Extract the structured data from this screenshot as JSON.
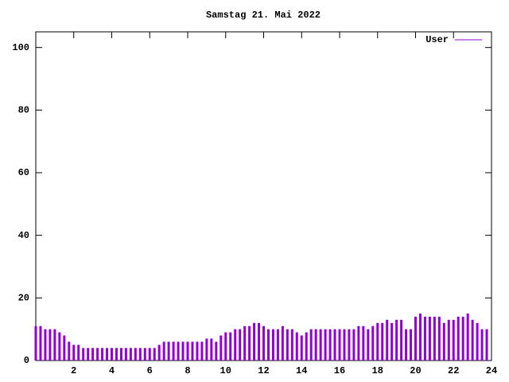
{
  "chart_data": {
    "type": "impulses",
    "title": "Samstag 21. Mai 2022",
    "x": [
      0,
      0.25,
      0.5,
      0.75,
      1,
      1.25,
      1.5,
      1.75,
      2,
      2.25,
      2.5,
      2.75,
      3,
      3.25,
      3.5,
      3.75,
      4,
      4.25,
      4.5,
      4.75,
      5,
      5.25,
      5.5,
      5.75,
      6,
      6.25,
      6.5,
      6.75,
      7,
      7.25,
      7.5,
      7.75,
      8,
      8.25,
      8.5,
      8.75,
      9,
      9.25,
      9.5,
      9.75,
      10,
      10.25,
      10.5,
      10.75,
      11,
      11.25,
      11.5,
      11.75,
      12,
      12.25,
      12.5,
      12.75,
      13,
      13.25,
      13.5,
      13.75,
      14,
      14.25,
      14.5,
      14.75,
      15,
      15.25,
      15.5,
      15.75,
      16,
      16.25,
      16.5,
      16.75,
      17,
      17.25,
      17.5,
      17.75,
      18,
      18.25,
      18.5,
      18.75,
      19,
      19.25,
      19.5,
      19.75,
      20,
      20.25,
      20.5,
      20.75,
      21,
      21.25,
      21.5,
      21.75,
      22,
      22.25,
      22.5,
      22.75,
      23,
      23.25,
      23.5,
      23.75
    ],
    "series": [
      {
        "name": "User",
        "color": "#9400d3",
        "values": [
          11,
          11,
          10,
          10,
          10,
          9,
          8,
          6,
          5,
          5,
          4,
          4,
          4,
          4,
          4,
          4,
          4,
          4,
          4,
          4,
          4,
          4,
          4,
          4,
          4,
          4,
          5,
          6,
          6,
          6,
          6,
          6,
          6,
          6,
          6,
          6,
          7,
          7,
          6,
          8,
          9,
          9,
          10,
          10,
          11,
          11,
          12,
          12,
          11,
          10,
          10,
          10,
          11,
          10,
          10,
          9,
          8,
          9,
          10,
          10,
          10,
          10,
          10,
          10,
          10,
          10,
          10,
          10,
          11,
          11,
          10,
          11,
          12,
          12,
          13,
          12,
          13,
          13,
          10,
          10,
          14,
          15,
          14,
          14,
          14,
          14,
          12,
          13,
          13,
          14,
          14,
          15,
          13,
          12,
          10,
          10
        ]
      }
    ],
    "xlim": [
      0,
      24
    ],
    "xticks": [
      2,
      4,
      6,
      8,
      10,
      12,
      14,
      16,
      18,
      20,
      22,
      24
    ],
    "ylim": [
      0,
      105
    ],
    "yticks": [
      0,
      20,
      40,
      60,
      80,
      100
    ],
    "legend": "top-right"
  }
}
